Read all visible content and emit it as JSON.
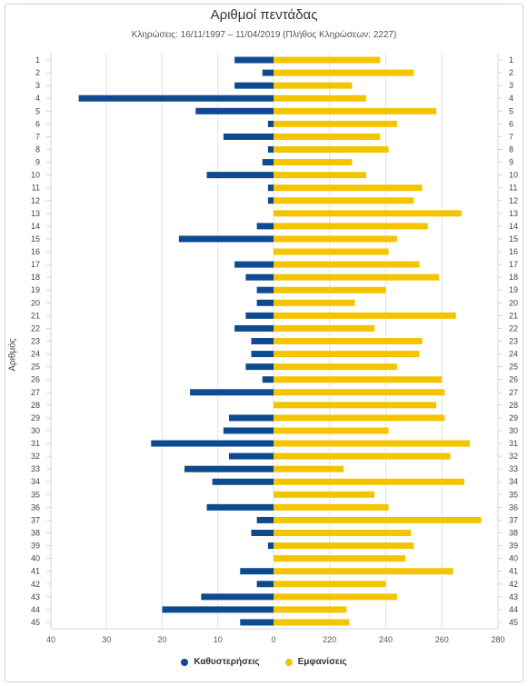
{
  "chart_data": {
    "type": "bar",
    "title": "Αριθμοί πεντάδας",
    "subtitle": "Κληρώσεις: 16/11/1997 – 11/04/2019 (Πλήθος Κληρώσεων: 2227)",
    "ylabel": "Αριθμός",
    "categories": [
      "1",
      "2",
      "3",
      "4",
      "5",
      "6",
      "7",
      "8",
      "9",
      "10",
      "11",
      "12",
      "13",
      "14",
      "15",
      "16",
      "17",
      "18",
      "19",
      "20",
      "21",
      "22",
      "23",
      "24",
      "25",
      "26",
      "27",
      "28",
      "29",
      "30",
      "31",
      "32",
      "33",
      "34",
      "35",
      "36",
      "37",
      "38",
      "39",
      "40",
      "41",
      "42",
      "43",
      "44",
      "45"
    ],
    "left_axis": {
      "ticks": [
        "40",
        "30",
        "20",
        "10",
        "0"
      ],
      "range": [
        40,
        0
      ]
    },
    "right_axis": {
      "ticks": [
        "220",
        "240",
        "260",
        "280"
      ],
      "range": [
        200,
        280
      ]
    },
    "series": [
      {
        "name": "Καθυστερήσεις",
        "color": "#0d4a8f",
        "values": [
          7,
          2,
          7,
          35,
          14,
          1,
          9,
          1,
          2,
          12,
          1,
          1,
          0,
          3,
          17,
          0,
          7,
          5,
          3,
          3,
          5,
          7,
          4,
          4,
          5,
          2,
          15,
          0,
          8,
          9,
          22,
          8,
          16,
          11,
          0,
          12,
          3,
          4,
          1,
          0,
          6,
          3,
          13,
          20,
          6
        ]
      },
      {
        "name": "Εμφανίσεις",
        "color": "#f5c400",
        "values": [
          238,
          250,
          228,
          233,
          258,
          244,
          238,
          241,
          228,
          233,
          253,
          250,
          267,
          255,
          244,
          241,
          252,
          259,
          240,
          229,
          265,
          236,
          253,
          252,
          244,
          260,
          261,
          258,
          261,
          241,
          270,
          263,
          225,
          268,
          236,
          241,
          274,
          249,
          250,
          247,
          264,
          240,
          244,
          226,
          227
        ]
      }
    ],
    "legend_position": "bottom",
    "grid": true
  }
}
